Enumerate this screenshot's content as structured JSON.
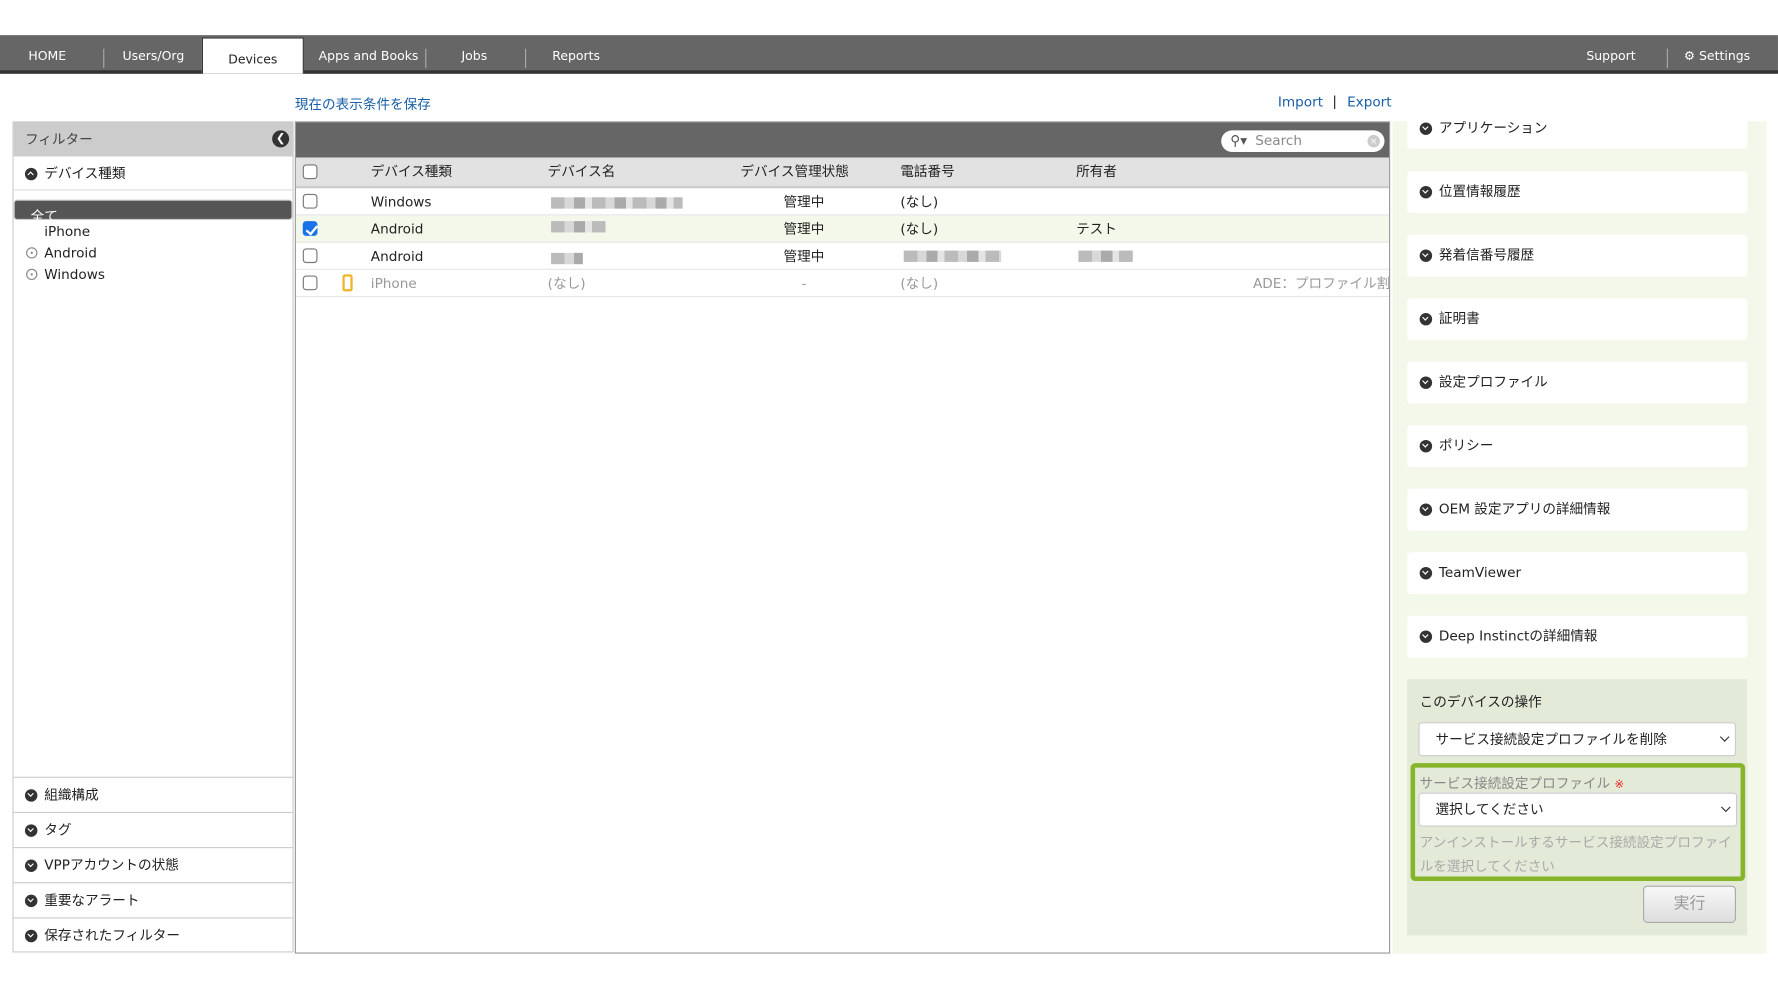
{
  "nav": {
    "tabs": [
      "HOME",
      "Users/Org",
      "Devices",
      "Apps and Books",
      "Jobs",
      "Reports"
    ],
    "active": "Devices",
    "support": "Support",
    "settings": "Settings"
  },
  "toolbar": {
    "save_view": "現在の表示条件を保存",
    "import": "Import",
    "export": "Export"
  },
  "filter": {
    "title": "フィルター",
    "device_type_section": "デバイス種類",
    "items": [
      "全て",
      "iPhone",
      "Android",
      "Windows"
    ],
    "selected": "全て",
    "sections": [
      "組織構成",
      "タグ",
      "VPPアカウントの状態",
      "重要なアラート",
      "保存されたフィルター"
    ]
  },
  "table": {
    "search_placeholder": "Search",
    "columns": [
      "デバイス種類",
      "デバイス名",
      "デバイス管理状態",
      "電話番号",
      "所有者"
    ],
    "rows": [
      {
        "type": "Windows",
        "name": "",
        "status": "管理中",
        "phone": "(なし)",
        "owner": "",
        "checked": false
      },
      {
        "type": "Android",
        "name": "",
        "status": "管理中",
        "phone": "(なし)",
        "owner": "テスト",
        "checked": true
      },
      {
        "type": "Android",
        "name": "",
        "status": "管理中",
        "phone": "",
        "owner": "",
        "checked": false
      },
      {
        "type": "iPhone",
        "name": "(なし)",
        "status": "-",
        "phone": "(なし)",
        "owner": "",
        "note": "ADE：プロファイル割",
        "checked": false
      }
    ]
  },
  "details": {
    "sections": [
      "アプリケーション",
      "位置情報履歴",
      "発着信番号履歴",
      "証明書",
      "設定プロファイル",
      "ポリシー",
      "OEM 設定アプリの詳細情報",
      "TeamViewer",
      "Deep Instinctの詳細情報"
    ]
  },
  "operations": {
    "title": "このデバイスの操作",
    "action": "サービス接続設定プロファイルを削除",
    "profile_label": "サービス接続設定プロファイル",
    "required_mark": "※",
    "profile_value": "選択してください",
    "hint": "アンインストールするサービス接続設定プロファイルを選択してください",
    "run": "実行"
  },
  "colors": {
    "accent": "#86b52a",
    "link": "#1a5fa8",
    "navbar": "#666666",
    "highlight": "#f3f8ea"
  }
}
